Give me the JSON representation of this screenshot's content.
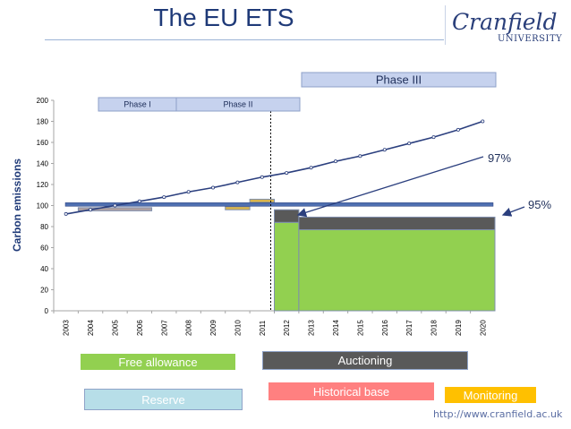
{
  "slide": {
    "title": "The EU ETS",
    "logo_name": "Cranfield",
    "logo_sub": "UNIVERSITY",
    "url": "http://www.cranfield.ac.uk"
  },
  "phases": [
    {
      "label": "Phase I",
      "start": 2005,
      "end": 2008
    },
    {
      "label": "Phase II",
      "start": 2008,
      "end": 2012
    },
    {
      "label": "Phase III",
      "start": 2013,
      "end": 2020
    }
  ],
  "annotations": {
    "a97": "97%",
    "a95": "95%"
  },
  "legend": {
    "free_allowance": "Free allowance",
    "auctioning": "Auctioning",
    "reserve": "Reserve",
    "historical_base": "Historical base",
    "monitoring": "Monitoring"
  },
  "colors": {
    "title": "#1f3a78",
    "trend": "#2b3f7e",
    "cap_line": "#4f6fb0",
    "phase_box": "#c6d2ee",
    "green": "#92d050",
    "dark": "#595959",
    "reserve": "#b7dee8",
    "historical": "#ff8080",
    "monitoring": "#ffc000",
    "brown": "#b0a0a0",
    "gold": "#d9b44a"
  },
  "chart_data": {
    "type": "line",
    "ylabel": "Carbon emissions",
    "ylim": [
      0,
      200
    ],
    "yticks": [
      0,
      20,
      40,
      60,
      80,
      100,
      120,
      140,
      160,
      180,
      200
    ],
    "categories": [
      "2003",
      "2004",
      "2005",
      "2006",
      "2007",
      "2008",
      "2009",
      "2010",
      "2011",
      "2012",
      "2013",
      "2014",
      "2015",
      "2016",
      "2017",
      "2018",
      "2019",
      "2020"
    ],
    "series": [
      {
        "values": [
          92,
          96,
          100,
          104,
          108,
          113,
          117,
          122,
          127,
          131,
          136,
          142,
          147,
          153,
          159,
          165,
          172,
          180
        ]
      }
    ],
    "cap_level": 101,
    "blocks": [
      {
        "kind": "brown",
        "start": 2004,
        "end": 2007,
        "low": 95,
        "high": 98
      },
      {
        "kind": "gold",
        "start": 2010,
        "end": 2011,
        "low": 96,
        "high": 99
      },
      {
        "kind": "gold",
        "start": 2011,
        "end": 2012,
        "low": 103,
        "high": 106
      },
      {
        "kind": "green",
        "start": 2012,
        "end": 2013,
        "low": 0,
        "high": 84
      },
      {
        "kind": "dark",
        "start": 2012,
        "end": 2013,
        "low": 84,
        "high": 96
      },
      {
        "kind": "green",
        "start": 2013,
        "end": 2021,
        "low": 0,
        "high": 77
      },
      {
        "kind": "dark",
        "start": 2013,
        "end": 2021,
        "low": 77,
        "high": 89
      }
    ],
    "phase_divider": 2012
  }
}
